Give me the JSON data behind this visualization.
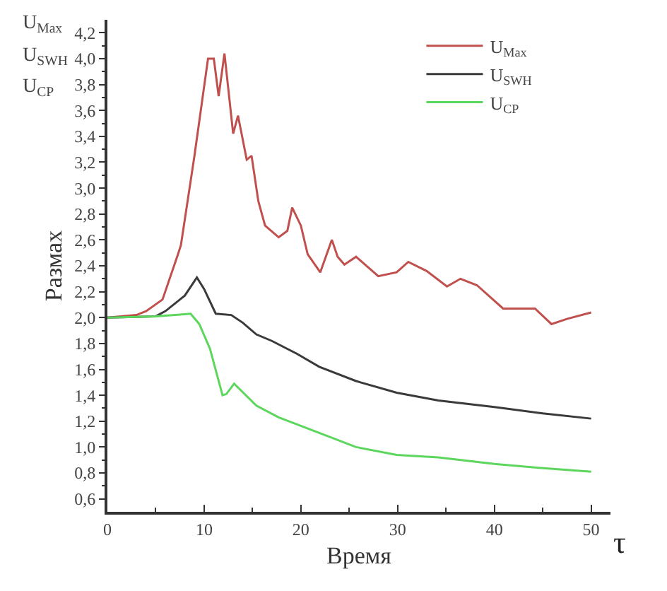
{
  "chart_data": {
    "type": "line",
    "xlabel": "Время",
    "ylabel": "Размах",
    "annotations": [
      "U$_{Max}$",
      "U$_{SWH}$",
      "U$_{CP}$",
      "τ"
    ],
    "xlim": [
      0,
      52
    ],
    "ylim": [
      0.5,
      4.3
    ],
    "xticks": [
      0,
      10,
      20,
      30,
      40,
      50
    ],
    "yticks": [
      {
        "value": 0.6,
        "label": "0,6"
      },
      {
        "value": 0.8,
        "label": "0,8"
      },
      {
        "value": 1.0,
        "label": "1,0"
      },
      {
        "value": 1.2,
        "label": "1,2"
      },
      {
        "value": 1.4,
        "label": "1,4"
      },
      {
        "value": 1.6,
        "label": "1,6"
      },
      {
        "value": 1.8,
        "label": "1,8"
      },
      {
        "value": 2.0,
        "label": "2,0"
      },
      {
        "value": 2.2,
        "label": "2,2"
      },
      {
        "value": 2.4,
        "label": "2,4"
      },
      {
        "value": 2.6,
        "label": "2,6"
      },
      {
        "value": 2.8,
        "label": "2,8"
      },
      {
        "value": 3.0,
        "label": "3,0"
      },
      {
        "value": 3.2,
        "label": "3,2"
      },
      {
        "value": 3.4,
        "label": "3,4"
      },
      {
        "value": 3.6,
        "label": "3,6"
      },
      {
        "value": 3.8,
        "label": "3,8"
      },
      {
        "value": 4.0,
        "label": "4,0"
      },
      {
        "value": 4.2,
        "label": "4,2"
      }
    ],
    "legend": "top right",
    "marker": "none",
    "line_style": "solid",
    "series": [
      {
        "name": "U$_{Max}$",
        "color": "#c0504d",
        "x": [
          0,
          3,
          4,
          5.7,
          7.3,
          7.6,
          9.0,
          10.4,
          11,
          11.5,
          12.1,
          13,
          13.5,
          14.4,
          14.9,
          15.6,
          16.3,
          17.7,
          18.6,
          19.1,
          20,
          20.7,
          22,
          23.2,
          23.8,
          24.5,
          25.7,
          28,
          29.9,
          31.1,
          33,
          35.1,
          36.5,
          38.2,
          40.9,
          44.2,
          45.9,
          47.5,
          50
        ],
        "values": [
          2.0,
          2.02,
          2.05,
          2.14,
          2.49,
          2.56,
          3.25,
          4.0,
          4.0,
          3.71,
          4.04,
          3.42,
          3.56,
          3.22,
          3.25,
          2.9,
          2.71,
          2.62,
          2.67,
          2.85,
          2.71,
          2.49,
          2.35,
          2.6,
          2.47,
          2.41,
          2.47,
          2.32,
          2.35,
          2.43,
          2.36,
          2.24,
          2.3,
          2.25,
          2.07,
          2.07,
          1.95,
          1.99,
          2.04
        ]
      },
      {
        "name": "U$_{SWH}$",
        "color": "#3a3a3a",
        "x": [
          0,
          5,
          6,
          8,
          9.25,
          10,
          11.2,
          12.8,
          14,
          15.4,
          17,
          19.6,
          21.9,
          25.7,
          29.9,
          34.2,
          40,
          45,
          50
        ],
        "values": [
          2.0,
          2.01,
          2.05,
          2.17,
          2.31,
          2.22,
          2.03,
          2.02,
          1.96,
          1.87,
          1.82,
          1.72,
          1.62,
          1.51,
          1.42,
          1.36,
          1.31,
          1.26,
          1.22
        ]
      },
      {
        "name": "U$_{CP}$",
        "color": "#5cd65c",
        "x": [
          0,
          5,
          7,
          8.6,
          9.5,
          10.6,
          11.9,
          12.3,
          13.1,
          15.4,
          17.7,
          21.9,
          25.7,
          29.9,
          34.2,
          40,
          44.6,
          50
        ],
        "values": [
          2.0,
          2.01,
          2.02,
          2.03,
          1.95,
          1.76,
          1.4,
          1.41,
          1.49,
          1.32,
          1.23,
          1.11,
          1.0,
          0.94,
          0.92,
          0.87,
          0.84,
          0.81
        ]
      }
    ]
  }
}
